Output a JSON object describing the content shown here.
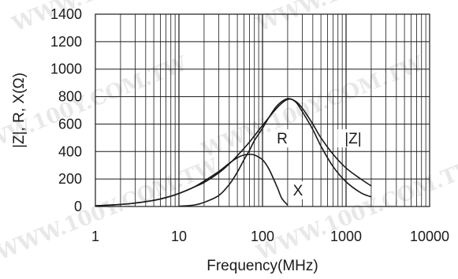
{
  "chart_data": {
    "type": "line",
    "xlabel": "Frequency(MHz)",
    "ylabel": "|Z|, R, X(Ω)",
    "x_scale": "log",
    "xlim": [
      1,
      10000
    ],
    "ylim": [
      0,
      1400
    ],
    "x_ticks": [
      "1",
      "10",
      "100",
      "1000",
      "10000"
    ],
    "y_ticks": [
      "0",
      "200",
      "400",
      "600",
      "800",
      "1000",
      "1200",
      "1400"
    ],
    "grid": true,
    "legend": "none",
    "series": [
      {
        "name": "|Z|",
        "label": "|Z|",
        "x": [
          1,
          2,
          3,
          5,
          7,
          10,
          15,
          20,
          30,
          40,
          50,
          70,
          100,
          150,
          200,
          250,
          300,
          400,
          500,
          700,
          1000,
          1500,
          2000
        ],
        "y": [
          5,
          15,
          25,
          45,
          65,
          95,
          140,
          175,
          245,
          310,
          370,
          470,
          590,
          720,
          780,
          765,
          715,
          600,
          500,
          380,
          280,
          200,
          150
        ]
      },
      {
        "name": "R",
        "label": "R",
        "x": [
          10,
          15,
          20,
          30,
          40,
          50,
          60,
          70,
          80,
          100,
          120,
          150,
          200,
          250,
          300,
          400,
          500,
          700,
          1000,
          1500,
          2000
        ],
        "y": [
          2,
          10,
          30,
          80,
          160,
          250,
          340,
          410,
          480,
          570,
          650,
          735,
          785,
          760,
          690,
          560,
          440,
          290,
          180,
          100,
          70
        ]
      },
      {
        "name": "X",
        "label": "X",
        "x": [
          1,
          2,
          3,
          5,
          7,
          10,
          15,
          20,
          30,
          40,
          50,
          60,
          70,
          80,
          100,
          120,
          150,
          170,
          200
        ],
        "y": [
          5,
          15,
          25,
          45,
          65,
          95,
          140,
          185,
          255,
          315,
          355,
          375,
          380,
          375,
          340,
          270,
          140,
          60,
          10
        ]
      }
    ]
  },
  "watermark": "WWW.100Y.COM.TW"
}
